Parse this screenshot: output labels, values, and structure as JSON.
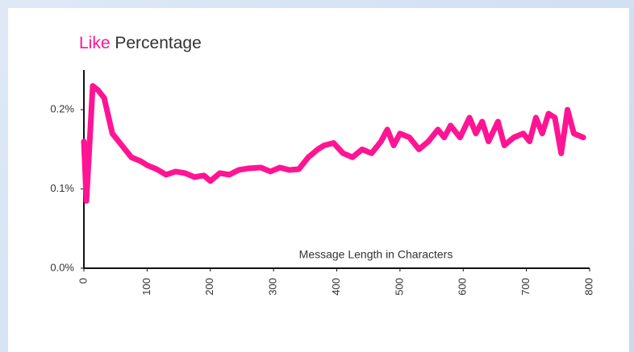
{
  "chart_data": {
    "type": "line",
    "title_highlight": "Like",
    "title_rest": "Percentage",
    "xlabel": "Message Length in Characters",
    "color": "#ff1493",
    "x": [
      0,
      4,
      14,
      22,
      32,
      45,
      60,
      75,
      90,
      100,
      115,
      130,
      145,
      160,
      175,
      190,
      200,
      215,
      230,
      245,
      260,
      280,
      295,
      310,
      325,
      340,
      355,
      370,
      380,
      395,
      410,
      425,
      440,
      455,
      470,
      480,
      490,
      500,
      515,
      530,
      545,
      560,
      570,
      580,
      595,
      610,
      620,
      630,
      640,
      655,
      665,
      680,
      695,
      705,
      715,
      725,
      735,
      745,
      755,
      765,
      775,
      790
    ],
    "values": [
      0.16,
      0.085,
      0.23,
      0.225,
      0.215,
      0.17,
      0.155,
      0.14,
      0.135,
      0.13,
      0.125,
      0.118,
      0.122,
      0.12,
      0.115,
      0.117,
      0.11,
      0.12,
      0.118,
      0.124,
      0.126,
      0.127,
      0.122,
      0.127,
      0.124,
      0.125,
      0.14,
      0.15,
      0.155,
      0.158,
      0.145,
      0.14,
      0.15,
      0.145,
      0.16,
      0.175,
      0.155,
      0.17,
      0.165,
      0.15,
      0.16,
      0.175,
      0.165,
      0.18,
      0.165,
      0.19,
      0.17,
      0.185,
      0.16,
      0.185,
      0.155,
      0.165,
      0.17,
      0.16,
      0.19,
      0.17,
      0.195,
      0.19,
      0.145,
      0.2,
      0.17,
      0.165
    ],
    "xlim": [
      0,
      800
    ],
    "xticks": [
      0,
      100,
      200,
      300,
      400,
      500,
      600,
      700,
      800
    ],
    "ylim": [
      0,
      0.25
    ],
    "yticks": [
      {
        "value": 0,
        "label": "0.0%"
      },
      {
        "value": 0.1,
        "label": "0.1%"
      },
      {
        "value": 0.2,
        "label": "0.2%"
      }
    ]
  }
}
